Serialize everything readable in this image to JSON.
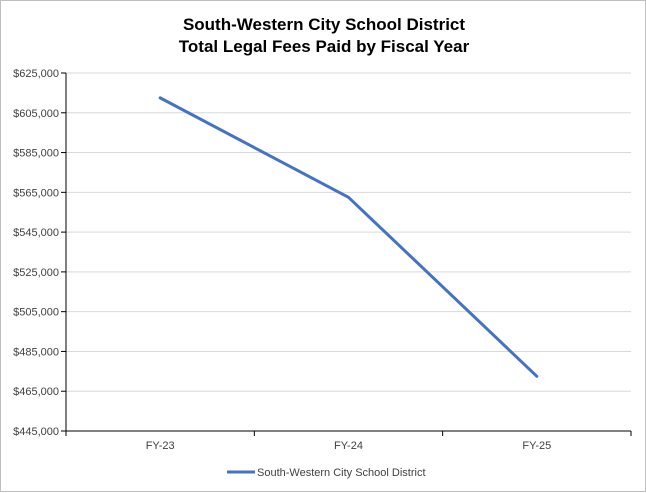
{
  "chart_data": {
    "type": "line",
    "title": "South-Western City School District",
    "subtitle": "Total Legal Fees Paid by Fiscal Year",
    "xlabel": "",
    "ylabel": "",
    "categories": [
      "FY-23",
      "FY-24",
      "FY-25"
    ],
    "series": [
      {
        "name": "South-Western City School District",
        "values": [
          612500,
          562500,
          472500
        ],
        "color": "#4472c4"
      }
    ],
    "ylim": [
      445000,
      625000
    ],
    "yticks": [
      445000,
      465000,
      485000,
      505000,
      525000,
      545000,
      565000,
      585000,
      605000,
      625000
    ],
    "ytick_labels": [
      "$445,000",
      "$465,000",
      "$485,000",
      "$505,000",
      "$525,000",
      "$545,000",
      "$565,000",
      "$585,000",
      "$605,000",
      "$625,000"
    ],
    "grid": true,
    "legend": "bottom"
  }
}
